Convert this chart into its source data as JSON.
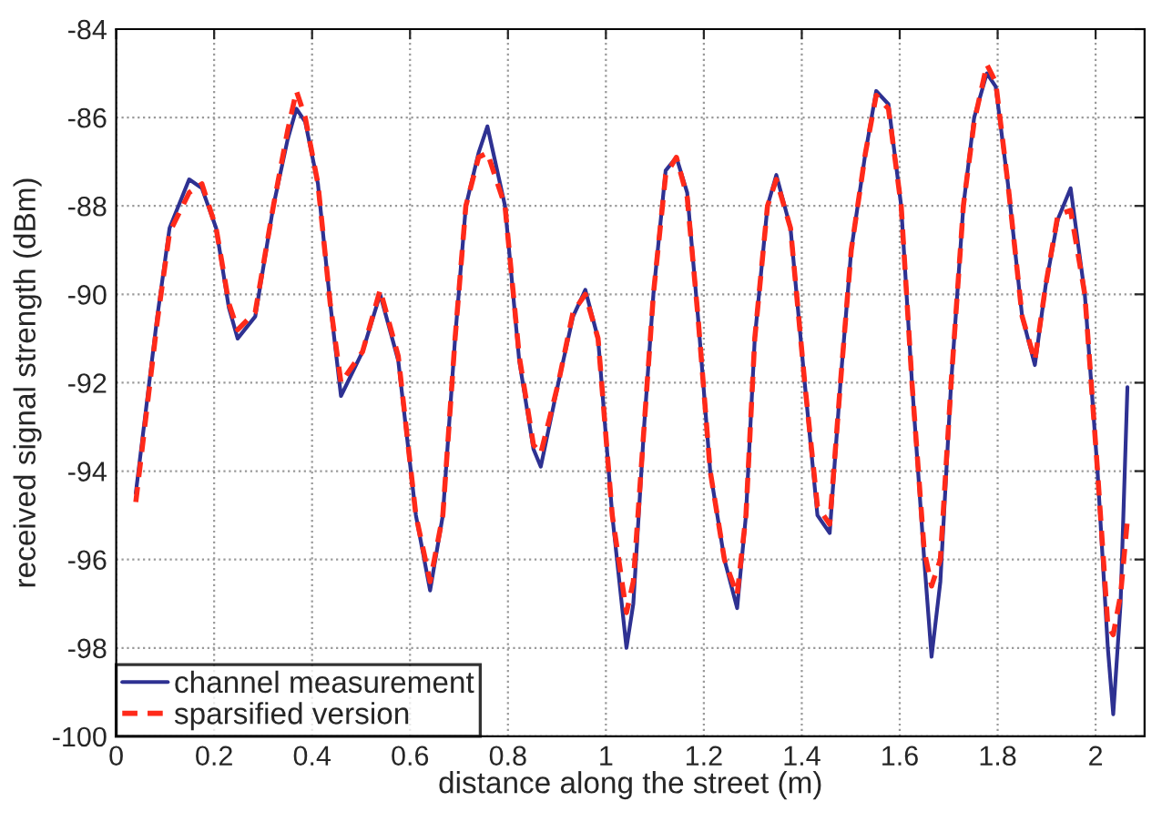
{
  "chart_data": {
    "type": "line",
    "xlabel": "distance along the street (m)",
    "ylabel": "received signal strength (dBm)",
    "xlim": [
      0,
      2.1
    ],
    "ylim": [
      -100,
      -84
    ],
    "xticks": [
      0,
      0.2,
      0.4,
      0.6,
      0.8,
      1,
      1.2,
      1.4,
      1.6,
      1.8,
      2
    ],
    "yticks": [
      -100,
      -98,
      -96,
      -94,
      -92,
      -90,
      -88,
      -86,
      -84
    ],
    "grid": true,
    "legend": "bottom left",
    "marker": "none",
    "series": [
      {
        "name": "channel measurement",
        "color": "#2e3192",
        "line_style": "solid",
        "x": [
          0.04,
          0.051,
          0.084,
          0.109,
          0.149,
          0.175,
          0.204,
          0.23,
          0.248,
          0.284,
          0.321,
          0.35,
          0.368,
          0.386,
          0.412,
          0.437,
          0.459,
          0.503,
          0.539,
          0.576,
          0.612,
          0.641,
          0.667,
          0.692,
          0.714,
          0.74,
          0.758,
          0.794,
          0.823,
          0.852,
          0.867,
          0.903,
          0.933,
          0.958,
          0.984,
          1.013,
          1.042,
          1.056,
          1.078,
          1.097,
          1.122,
          1.144,
          1.166,
          1.188,
          1.213,
          1.242,
          1.268,
          1.286,
          1.304,
          1.33,
          1.348,
          1.377,
          1.406,
          1.432,
          1.457,
          1.479,
          1.501,
          1.53,
          1.552,
          1.577,
          1.603,
          1.625,
          1.65,
          1.665,
          1.683,
          1.705,
          1.73,
          1.752,
          1.778,
          1.796,
          1.821,
          1.85,
          1.876,
          1.898,
          1.923,
          1.949,
          1.978,
          2.004,
          2.025,
          2.036,
          2.051,
          2.065
        ],
        "values": [
          -94.5,
          -93.5,
          -90.5,
          -88.5,
          -87.4,
          -87.6,
          -88.5,
          -90.3,
          -91,
          -90.5,
          -88,
          -86.5,
          -85.8,
          -86.1,
          -87.5,
          -90.2,
          -92.3,
          -91.3,
          -90,
          -91.5,
          -95,
          -96.7,
          -95,
          -91,
          -88,
          -86.8,
          -86.2,
          -88,
          -91.5,
          -93.5,
          -93.9,
          -92,
          -90.5,
          -89.9,
          -91,
          -95,
          -98,
          -97,
          -93,
          -90,
          -87.2,
          -86.9,
          -87.7,
          -90.5,
          -94,
          -96,
          -97.1,
          -95,
          -91,
          -88,
          -87.3,
          -88.5,
          -92,
          -95,
          -95.4,
          -92,
          -89,
          -86.8,
          -85.4,
          -85.7,
          -88,
          -92,
          -96,
          -98.2,
          -96.5,
          -92,
          -88,
          -86,
          -85,
          -85.3,
          -87.5,
          -90.5,
          -91.6,
          -89.8,
          -88.3,
          -87.6,
          -90,
          -94,
          -98,
          -99.5,
          -97,
          -92.1
        ]
      },
      {
        "name": "sparsified version",
        "color": "#ff2a1a",
        "line_style": "dashed",
        "x": [
          0.04,
          0.084,
          0.109,
          0.149,
          0.175,
          0.204,
          0.23,
          0.248,
          0.284,
          0.321,
          0.35,
          0.368,
          0.386,
          0.412,
          0.437,
          0.459,
          0.503,
          0.539,
          0.576,
          0.612,
          0.641,
          0.667,
          0.692,
          0.714,
          0.74,
          0.758,
          0.794,
          0.823,
          0.852,
          0.867,
          0.903,
          0.933,
          0.958,
          0.984,
          1.013,
          1.042,
          1.056,
          1.078,
          1.097,
          1.122,
          1.144,
          1.166,
          1.188,
          1.213,
          1.242,
          1.268,
          1.286,
          1.304,
          1.33,
          1.348,
          1.377,
          1.406,
          1.432,
          1.457,
          1.479,
          1.501,
          1.53,
          1.552,
          1.577,
          1.603,
          1.625,
          1.65,
          1.665,
          1.683,
          1.705,
          1.73,
          1.752,
          1.778,
          1.796,
          1.821,
          1.85,
          1.876,
          1.898,
          1.923,
          1.949,
          1.978,
          2.004,
          2.025,
          2.036,
          2.051,
          2.065
        ],
        "values": [
          -94.7,
          -90.6,
          -88.6,
          -87.7,
          -87.5,
          -88.5,
          -90.2,
          -90.8,
          -90.4,
          -88,
          -86.3,
          -85.4,
          -86,
          -87.5,
          -90.2,
          -92,
          -91.3,
          -89.9,
          -91.4,
          -95,
          -96.5,
          -95,
          -91,
          -88,
          -86.9,
          -86.8,
          -88,
          -91.4,
          -93.4,
          -93.6,
          -92,
          -90.4,
          -90,
          -91,
          -95,
          -97.2,
          -96.5,
          -93,
          -90,
          -87.3,
          -86.9,
          -87.8,
          -90.5,
          -94,
          -96,
          -96.8,
          -95,
          -91,
          -88,
          -87.4,
          -88.5,
          -92,
          -94.8,
          -95.2,
          -92,
          -89,
          -86.8,
          -85.5,
          -85.8,
          -88,
          -92,
          -95.8,
          -96.6,
          -96,
          -92,
          -88,
          -86.1,
          -84.8,
          -85.2,
          -87.5,
          -90.5,
          -91.5,
          -89.8,
          -88.2,
          -88.1,
          -90,
          -94,
          -97.5,
          -97.7,
          -96.8,
          -95.1
        ]
      }
    ]
  }
}
